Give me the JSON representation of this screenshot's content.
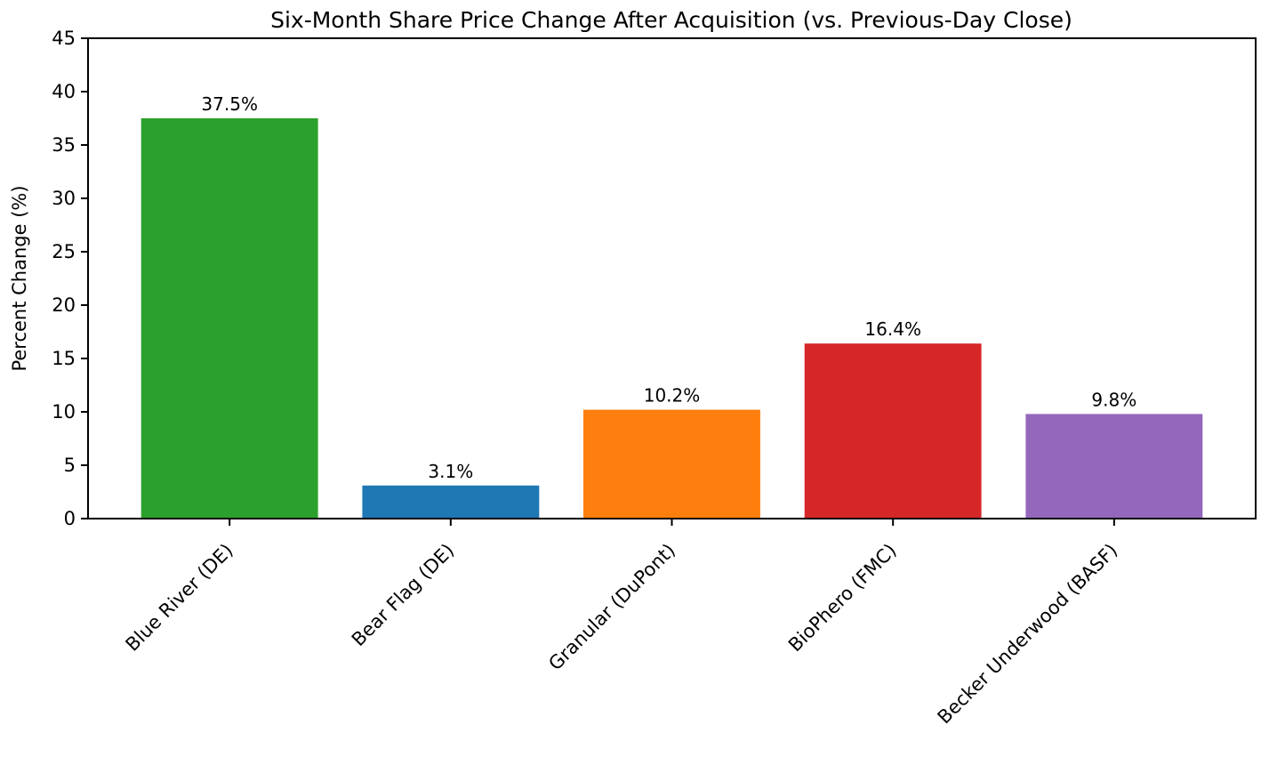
{
  "chart_data": {
    "type": "bar",
    "title": "Six-Month Share Price Change After Acquisition (vs. Previous-Day Close)",
    "xlabel": "",
    "ylabel": "Percent Change (%)",
    "categories": [
      "Blue River (DE)",
      "Bear Flag (DE)",
      "Granular (DuPont)",
      "BioPhero (FMC)",
      "Becker Underwood (BASF)"
    ],
    "values": [
      37.5,
      3.1,
      10.2,
      16.4,
      9.8
    ],
    "bar_labels": [
      "37.5%",
      "3.1%",
      "10.2%",
      "16.4%",
      "9.8%"
    ],
    "bar_colors": [
      "#2ca02c",
      "#1f77b4",
      "#ff7f0e",
      "#d62728",
      "#9467bd"
    ],
    "ylim": [
      0,
      45
    ],
    "yticks": [
      0,
      5,
      10,
      15,
      20,
      25,
      30,
      35,
      40,
      45
    ],
    "xtick_rotation": 45,
    "grid": false,
    "legend": null,
    "background_color": "#ffffff",
    "text_color": "#000000",
    "axis_color": "#000000"
  }
}
